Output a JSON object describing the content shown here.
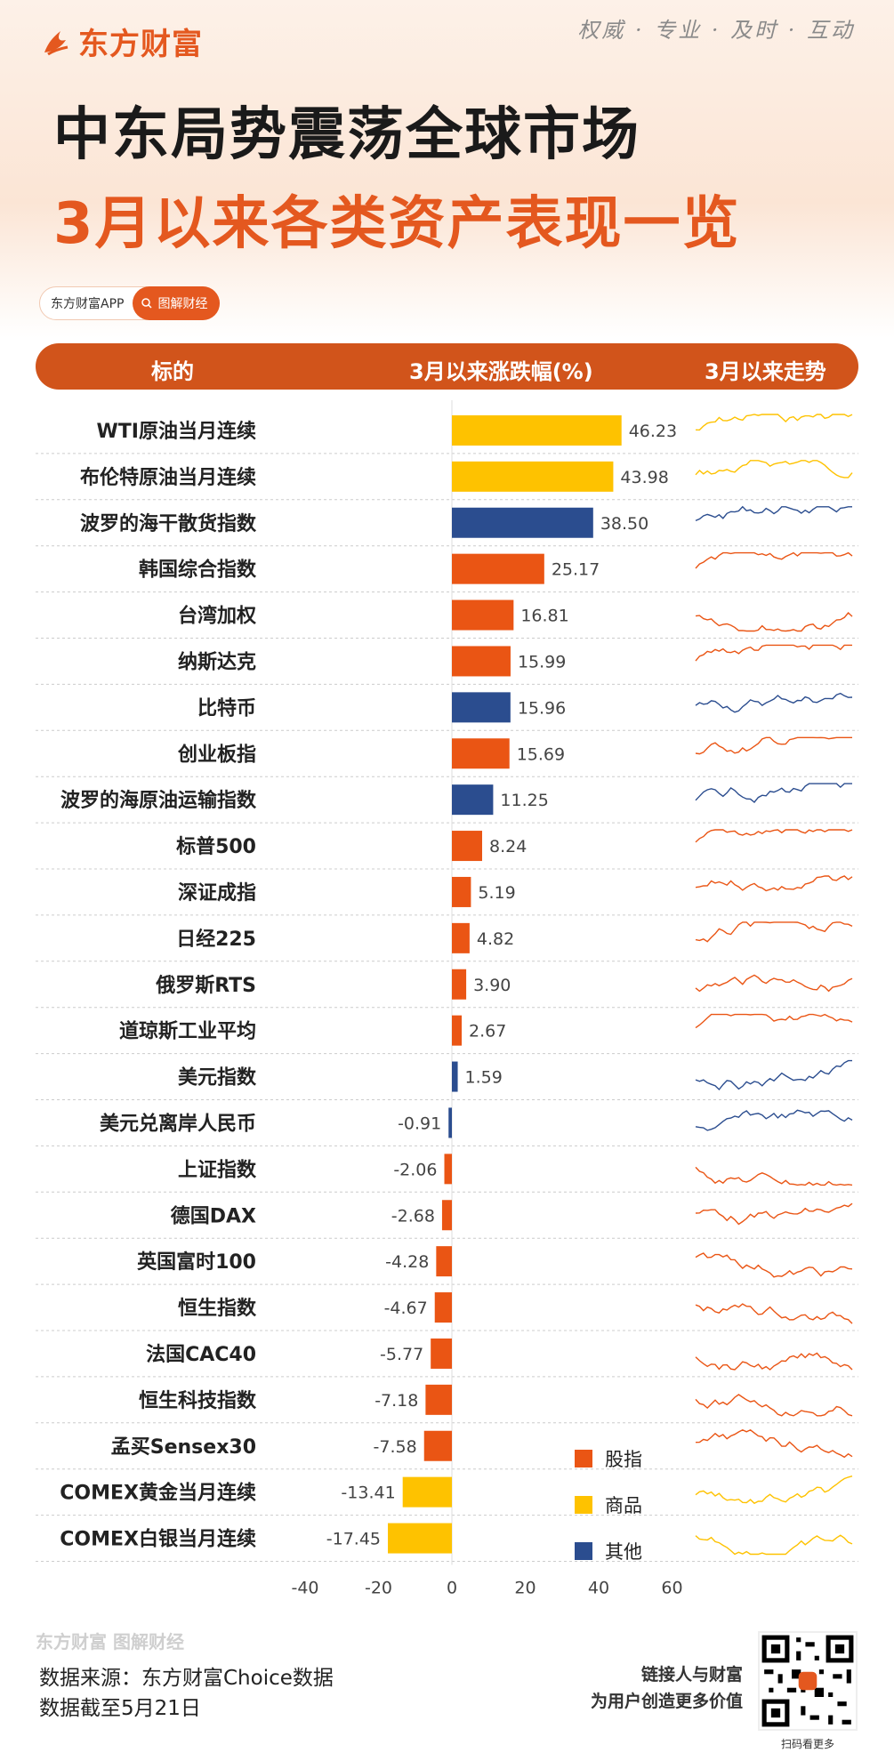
{
  "brand": {
    "logo_text": "东方财富",
    "slogan": "权威 · 专业 · 及时 · 互动"
  },
  "title": {
    "line1": "中东局势震荡全球市场",
    "line2": "3月以来各类资产表现一览"
  },
  "badge": {
    "left": "东方财富APP",
    "right": "图解财经"
  },
  "header": {
    "col1": "标的",
    "col2": "3月以来涨跌幅(%)",
    "col3": "3月以来走势"
  },
  "colors": {
    "股指": "#ea5514",
    "商品": "#fec200",
    "其他": "#2b4d8f",
    "accent": "#e4581f",
    "header_bg": "#d1541b"
  },
  "chart_data": {
    "type": "bar",
    "orientation": "horizontal",
    "xlim": [
      -40,
      60
    ],
    "x_ticks": [
      -40,
      -20,
      0,
      20,
      40,
      60
    ],
    "categories": [
      "WTI原油当月连续",
      "布伦特原油当月连续",
      "波罗的海干散货指数",
      "韩国综合指数",
      "台湾加权",
      "纳斯达克",
      "比特币",
      "创业板指",
      "波罗的海原油运输指数",
      "标普500",
      "深证成指",
      "日经225",
      "俄罗斯RTS",
      "道琼斯工业平均",
      "美元指数",
      "美元兑离岸人民币",
      "上证指数",
      "德国DAX",
      "英国富时100",
      "恒生指数",
      "法国CAC40",
      "恒生科技指数",
      "孟买Sensex30",
      "COMEX黄金当月连续",
      "COMEX白银当月连续"
    ],
    "values": [
      46.23,
      43.98,
      38.5,
      25.17,
      16.81,
      15.99,
      15.96,
      15.69,
      11.25,
      8.24,
      5.19,
      4.82,
      3.9,
      2.67,
      1.59,
      -0.91,
      -2.06,
      -2.68,
      -4.28,
      -4.67,
      -5.77,
      -7.18,
      -7.58,
      -13.41,
      -17.45
    ],
    "value_labels": [
      "46.23",
      "43.98",
      "38.50",
      "25.17",
      "16.81",
      "15.99",
      "15.96",
      "15.69",
      "11.25",
      "8.24",
      "5.19",
      "4.82",
      "3.90",
      "2.67",
      "1.59",
      "-0.91",
      "-2.06",
      "-2.68",
      "-4.28",
      "-4.67",
      "-5.77",
      "-7.18",
      "-7.58",
      "-13.41",
      "-17.45"
    ],
    "groups": [
      "商品",
      "商品",
      "其他",
      "股指",
      "股指",
      "股指",
      "其他",
      "股指",
      "其他",
      "股指",
      "股指",
      "股指",
      "股指",
      "股指",
      "其他",
      "其他",
      "股指",
      "股指",
      "股指",
      "股指",
      "股指",
      "股指",
      "股指",
      "商品",
      "商品"
    ],
    "legend": [
      {
        "name": "股指"
      },
      {
        "name": "商品"
      },
      {
        "name": "其他"
      }
    ]
  },
  "footer": {
    "logo": "东方财富 图解财经",
    "source": "数据来源：东方财富Choice数据",
    "date": "数据截至5月21日",
    "slogan_line1": "链接人与财富",
    "slogan_line2": "为用户创造更多价值",
    "qr_caption": "扫码看更多"
  }
}
